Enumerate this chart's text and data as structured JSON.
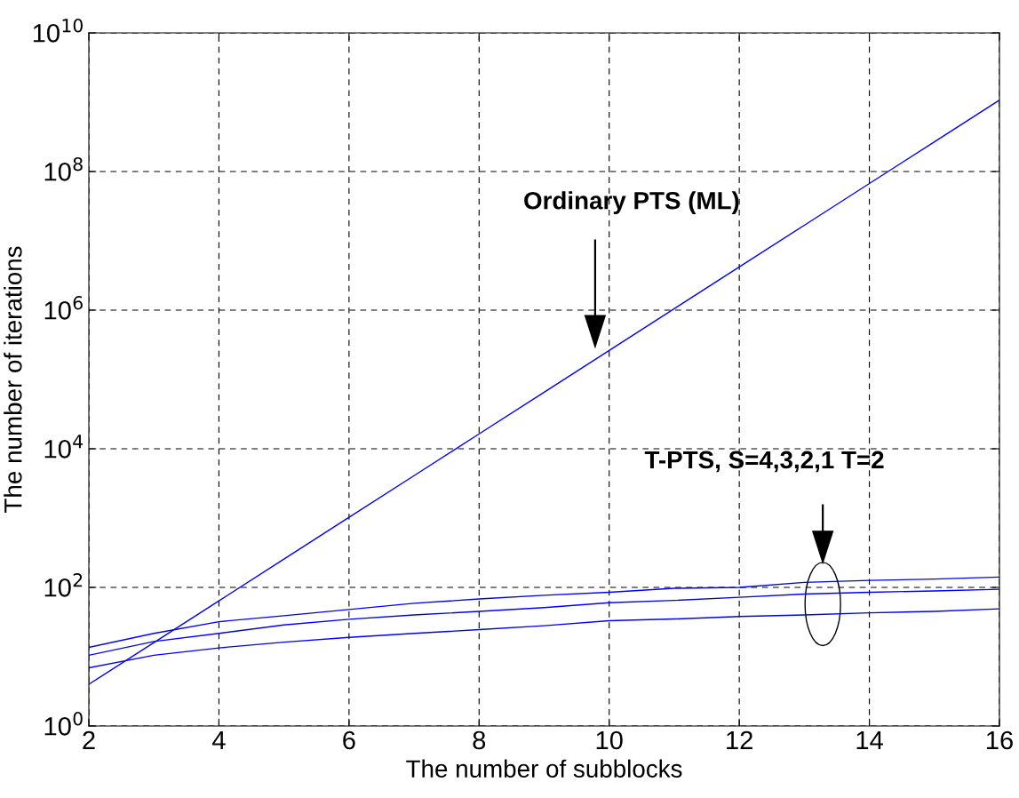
{
  "chart_data": {
    "type": "line",
    "xlabel": "The number of subblocks",
    "ylabel": "The number of iterations",
    "x": [
      2,
      3,
      4,
      5,
      6,
      7,
      8,
      9,
      10,
      11,
      12,
      13,
      14,
      15,
      16
    ],
    "series": [
      {
        "color": "#0000ff",
        "values": [
          4,
          16,
          64,
          256,
          1024,
          4096,
          16384,
          65536,
          262144,
          1048576,
          4194304,
          16777216,
          67108864,
          268435456,
          1073741824
        ]
      },
      {
        "color": "#0000ff",
        "values": [
          13.6,
          21.7,
          32,
          39,
          48,
          59,
          68,
          77,
          85,
          97,
          100,
          118,
          126,
          132,
          141
        ]
      },
      {
        "color": "#0000ff",
        "values": [
          10.5,
          16.6,
          21.7,
          28.7,
          34.7,
          40,
          45,
          51,
          60,
          65,
          72,
          80,
          85,
          89,
          94
        ]
      },
      {
        "color": "#0000ff",
        "values": [
          6.9,
          10.5,
          13.4,
          16.2,
          19,
          21.7,
          24.6,
          28,
          33,
          35,
          38,
          40,
          43,
          45,
          49
        ]
      }
    ],
    "log": "y",
    "xlim": [
      2,
      16
    ],
    "xticks": [
      2,
      4,
      6,
      8,
      10,
      12,
      14,
      16
    ],
    "ylim": [
      1,
      10000000000
    ],
    "yticks": [
      {
        "value": 1,
        "label": "10$^{0}$"
      },
      {
        "value": 100,
        "label": "10$^{2}$"
      },
      {
        "value": 10000,
        "label": "10$^{4}$"
      },
      {
        "value": 1000000,
        "label": "10$^{6}$"
      },
      {
        "value": 100000000,
        "label": "10$^{8}$"
      },
      {
        "value": 10000000000,
        "label": "10$^{10}$"
      }
    ],
    "grid": true,
    "legend": false,
    "marker": "none",
    "line_style": "solid",
    "annotations": [
      "Ordinary PTS (ML)",
      "T-PTS, S=4,3,2,1 T=2"
    ]
  }
}
